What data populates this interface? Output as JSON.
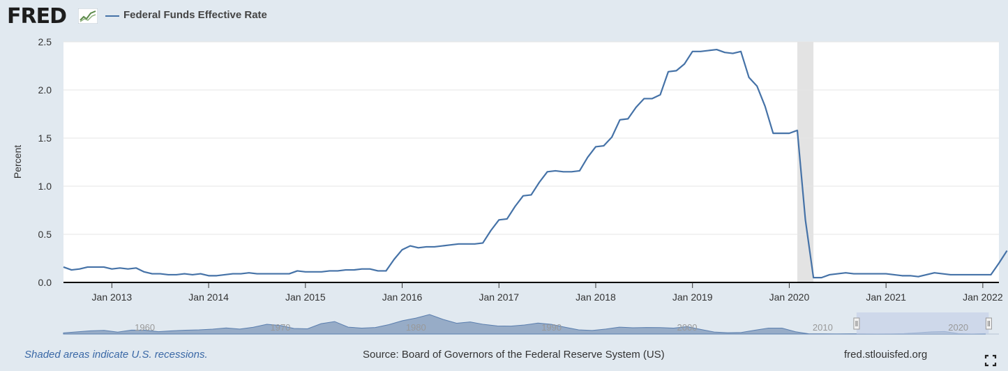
{
  "brand": {
    "name": "FRED"
  },
  "colors": {
    "series": "#4572a7",
    "recession": "#e3e3e3",
    "navigator_fill": "#7d97b9",
    "navigator_window": "#c3d0e6"
  },
  "icons": {
    "logo": "fred-chart-logo-icon",
    "fullscreen": "fullscreen-icon"
  },
  "footer": {
    "recession_note": "Shaded areas indicate U.S. recessions.",
    "source": "Source: Board of Governors of the Federal Reserve System (US)",
    "site": "fred.stlouisfed.org"
  },
  "chart_data": {
    "type": "line",
    "title": "",
    "ylabel": "Percent",
    "xlabel": "",
    "x_unit": "month",
    "x_start": "2012-07",
    "ylim": [
      0,
      2.5
    ],
    "xlim": [
      "2012-07",
      "2022-03"
    ],
    "yticks": [
      "0.0",
      "0.5",
      "1.0",
      "1.5",
      "2.0",
      "2.5"
    ],
    "xticks": [
      {
        "date": "2013-01",
        "label": "Jan 2013"
      },
      {
        "date": "2014-01",
        "label": "Jan 2014"
      },
      {
        "date": "2015-01",
        "label": "Jan 2015"
      },
      {
        "date": "2016-01",
        "label": "Jan 2016"
      },
      {
        "date": "2017-01",
        "label": "Jan 2017"
      },
      {
        "date": "2018-01",
        "label": "Jan 2018"
      },
      {
        "date": "2019-01",
        "label": "Jan 2019"
      },
      {
        "date": "2020-01",
        "label": "Jan 2020"
      },
      {
        "date": "2021-01",
        "label": "Jan 2021"
      },
      {
        "date": "2022-01",
        "label": "Jan 2022"
      }
    ],
    "grid": true,
    "legend_position": "top-left",
    "recessions": [
      {
        "start": "2020-02",
        "end": "2020-04"
      }
    ],
    "series": [
      {
        "name": "Federal Funds Effective Rate",
        "values": [
          0.16,
          0.13,
          0.14,
          0.16,
          0.16,
          0.16,
          0.14,
          0.15,
          0.14,
          0.15,
          0.11,
          0.09,
          0.09,
          0.08,
          0.08,
          0.09,
          0.08,
          0.09,
          0.07,
          0.07,
          0.08,
          0.09,
          0.09,
          0.1,
          0.09,
          0.09,
          0.09,
          0.09,
          0.09,
          0.12,
          0.11,
          0.11,
          0.11,
          0.12,
          0.12,
          0.13,
          0.13,
          0.14,
          0.14,
          0.12,
          0.12,
          0.24,
          0.34,
          0.38,
          0.36,
          0.37,
          0.37,
          0.38,
          0.39,
          0.4,
          0.4,
          0.4,
          0.41,
          0.54,
          0.65,
          0.66,
          0.79,
          0.9,
          0.91,
          1.04,
          1.15,
          1.16,
          1.15,
          1.15,
          1.16,
          1.3,
          1.41,
          1.42,
          1.51,
          1.69,
          1.7,
          1.82,
          1.91,
          1.91,
          1.95,
          2.19,
          2.2,
          2.27,
          2.4,
          2.4,
          2.41,
          2.42,
          2.39,
          2.38,
          2.4,
          2.13,
          2.04,
          1.83,
          1.55,
          1.55,
          1.55,
          1.58,
          0.65,
          0.05,
          0.05,
          0.08,
          0.09,
          0.1,
          0.09,
          0.09,
          0.09,
          0.09,
          0.09,
          0.08,
          0.07,
          0.07,
          0.06,
          0.08,
          0.1,
          0.09,
          0.08,
          0.08,
          0.08,
          0.08,
          0.08,
          0.08,
          0.2,
          0.33
        ]
      }
    ],
    "navigator": {
      "labels": [
        "1960",
        "1970",
        "1980",
        "1990",
        "2000",
        "2010",
        "2020"
      ],
      "x_range": [
        1954,
        2023
      ],
      "selected_range": [
        2012.5,
        2022.25
      ],
      "values": [
        [
          1954,
          1.0
        ],
        [
          1955,
          1.8
        ],
        [
          1956,
          2.7
        ],
        [
          1957,
          3.1
        ],
        [
          1958,
          1.6
        ],
        [
          1959,
          3.3
        ],
        [
          1960,
          3.2
        ],
        [
          1961,
          2.0
        ],
        [
          1962,
          2.7
        ],
        [
          1963,
          3.2
        ],
        [
          1964,
          3.5
        ],
        [
          1965,
          4.1
        ],
        [
          1966,
          5.1
        ],
        [
          1967,
          4.2
        ],
        [
          1968,
          5.7
        ],
        [
          1969,
          8.2
        ],
        [
          1970,
          7.2
        ],
        [
          1971,
          4.7
        ],
        [
          1972,
          4.4
        ],
        [
          1973,
          8.7
        ],
        [
          1974,
          10.5
        ],
        [
          1975,
          5.8
        ],
        [
          1976,
          5.0
        ],
        [
          1977,
          5.5
        ],
        [
          1978,
          7.9
        ],
        [
          1979,
          11.2
        ],
        [
          1980,
          13.4
        ],
        [
          1981,
          16.4
        ],
        [
          1982,
          12.3
        ],
        [
          1983,
          9.1
        ],
        [
          1984,
          10.2
        ],
        [
          1985,
          8.1
        ],
        [
          1986,
          6.8
        ],
        [
          1987,
          6.7
        ],
        [
          1988,
          7.6
        ],
        [
          1989,
          9.2
        ],
        [
          1990,
          8.1
        ],
        [
          1991,
          5.7
        ],
        [
          1992,
          3.5
        ],
        [
          1993,
          3.0
        ],
        [
          1994,
          4.2
        ],
        [
          1995,
          5.8
        ],
        [
          1996,
          5.3
        ],
        [
          1997,
          5.5
        ],
        [
          1998,
          5.4
        ],
        [
          1999,
          5.0
        ],
        [
          2000,
          6.2
        ],
        [
          2001,
          3.9
        ],
        [
          2002,
          1.7
        ],
        [
          2003,
          1.1
        ],
        [
          2004,
          1.3
        ],
        [
          2005,
          3.2
        ],
        [
          2006,
          5.0
        ],
        [
          2007,
          5.0
        ],
        [
          2008,
          1.9
        ],
        [
          2009,
          0.16
        ],
        [
          2010,
          0.18
        ],
        [
          2011,
          0.1
        ],
        [
          2012,
          0.14
        ],
        [
          2013,
          0.11
        ],
        [
          2014,
          0.09
        ],
        [
          2015,
          0.13
        ],
        [
          2016,
          0.4
        ],
        [
          2017,
          1.0
        ],
        [
          2018,
          1.83
        ],
        [
          2019,
          2.16
        ],
        [
          2020,
          0.38
        ],
        [
          2021,
          0.08
        ],
        [
          2022,
          0.33
        ]
      ]
    }
  }
}
